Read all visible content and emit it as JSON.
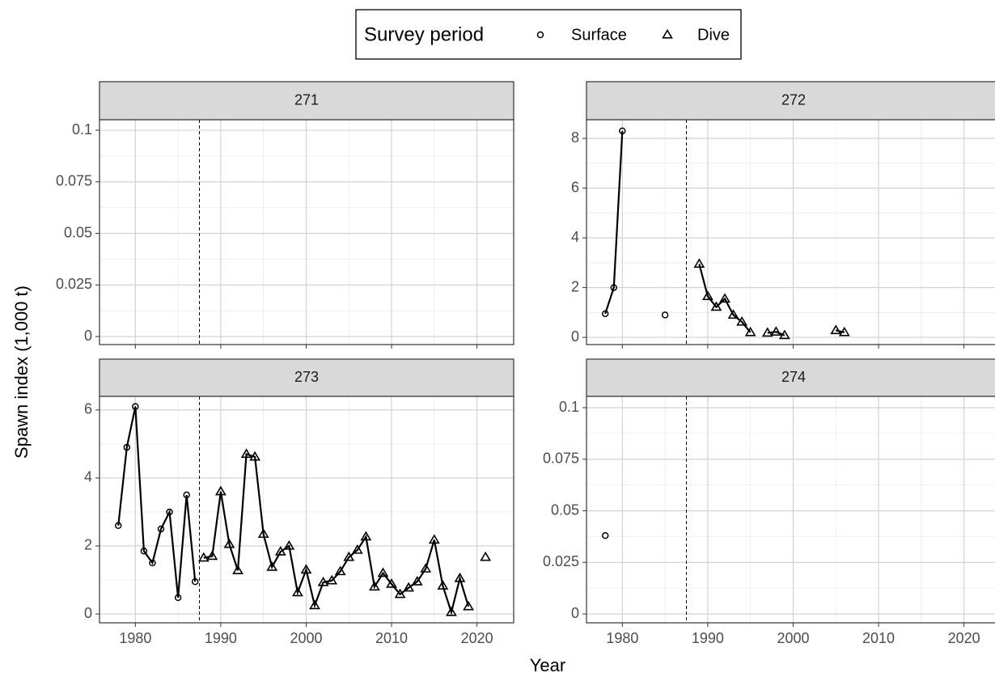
{
  "legend": {
    "title": "Survey period",
    "entries": [
      {
        "name": "Surface",
        "marker": "circle"
      },
      {
        "name": "Dive",
        "marker": "triangle"
      }
    ]
  },
  "x_label": "Year",
  "y_label": "Spawn index (1,000 t)",
  "chart_data": [
    {
      "type": "line",
      "title": "271",
      "color": "#000000",
      "grid": true,
      "minor_grid": true,
      "vline": 1987.5,
      "x_tick_labels": false,
      "xlim": [
        1975.8,
        2024.3
      ],
      "xticks": [
        1980,
        1990,
        2000,
        2010,
        2020
      ],
      "ylim": [
        -0.0039,
        0.1051
      ],
      "yticks": [
        0,
        0.025,
        0.05,
        0.075,
        0.1
      ],
      "series": [
        {
          "marker": "circle",
          "x": [],
          "values": []
        },
        {
          "marker": "triangle",
          "x": [],
          "values": []
        }
      ]
    },
    {
      "type": "line",
      "title": "272",
      "color": "#000000",
      "grid": true,
      "minor_grid": true,
      "vline": 1987.5,
      "x_tick_labels": false,
      "xlim": [
        1975.8,
        2024.3
      ],
      "xticks": [
        1980,
        1990,
        2000,
        2010,
        2020
      ],
      "ylim": [
        -0.29,
        8.75
      ],
      "yticks": [
        0,
        2,
        4,
        6,
        8
      ],
      "series": [
        {
          "marker": "circle",
          "x": [
            1978,
            1979,
            1980,
            1981,
            1985
          ],
          "values": [
            0.95,
            2.0,
            8.3,
            null,
            0.9
          ]
        },
        {
          "marker": "triangle",
          "x": [
            1989,
            1990,
            1991,
            1992,
            1993,
            1994,
            1995,
            1996,
            1997,
            1998,
            1999,
            2000,
            2005,
            2006
          ],
          "values": [
            2.95,
            1.65,
            1.22,
            1.55,
            0.9,
            0.62,
            0.2,
            null,
            0.18,
            0.22,
            0.08,
            null,
            0.28,
            0.2
          ]
        }
      ]
    },
    {
      "type": "line",
      "title": "273",
      "color": "#000000",
      "grid": true,
      "minor_grid": true,
      "vline": 1987.5,
      "x_tick_labels": true,
      "xlim": [
        1975.8,
        2024.3
      ],
      "xticks": [
        1980,
        1990,
        2000,
        2010,
        2020
      ],
      "ylim": [
        -0.26,
        6.4
      ],
      "yticks": [
        0,
        2,
        4,
        6
      ],
      "series": [
        {
          "marker": "circle",
          "x": [
            1978,
            1979,
            1980,
            1981,
            1982,
            1983,
            1984,
            1985,
            1986,
            1987
          ],
          "values": [
            2.6,
            4.9,
            6.1,
            1.85,
            1.5,
            2.5,
            3.0,
            0.48,
            3.5,
            0.95
          ]
        },
        {
          "marker": "triangle",
          "x": [
            1988,
            1989,
            1990,
            1991,
            1992,
            1993,
            1994,
            1995,
            1996,
            1997,
            1998,
            1999,
            2000,
            2001,
            2002,
            2003,
            2004,
            2005,
            2006,
            2007,
            2008,
            2009,
            2010,
            2011,
            2012,
            2013,
            2014,
            2015,
            2016,
            2017,
            2018,
            2019,
            2020,
            2021
          ],
          "values": [
            1.65,
            1.7,
            3.6,
            2.05,
            1.28,
            4.7,
            4.62,
            2.35,
            1.38,
            1.83,
            2.0,
            0.63,
            1.3,
            0.25,
            0.93,
            0.98,
            1.25,
            1.67,
            1.88,
            2.27,
            0.8,
            1.2,
            0.88,
            0.58,
            0.77,
            0.95,
            1.33,
            2.18,
            0.83,
            0.05,
            1.05,
            0.22,
            null,
            1.67
          ]
        }
      ]
    },
    {
      "type": "line",
      "title": "274",
      "color": "#000000",
      "grid": true,
      "minor_grid": true,
      "vline": 1987.5,
      "x_tick_labels": true,
      "xlim": [
        1975.8,
        2024.3
      ],
      "xticks": [
        1980,
        1990,
        2000,
        2010,
        2020
      ],
      "ylim": [
        -0.0043,
        0.1055
      ],
      "yticks": [
        0,
        0.025,
        0.05,
        0.075,
        0.1
      ],
      "series": [
        {
          "marker": "circle",
          "x": [
            1978
          ],
          "values": [
            0.038
          ]
        },
        {
          "marker": "triangle",
          "x": [],
          "values": []
        }
      ]
    }
  ]
}
